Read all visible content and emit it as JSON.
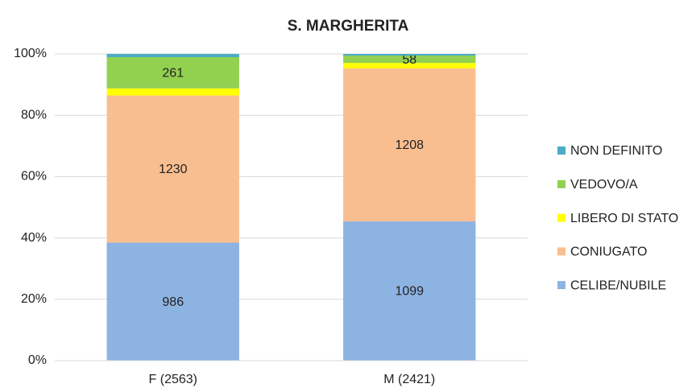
{
  "chart_data": {
    "type": "bar",
    "stacking": "percent",
    "title": "S. MARGHERITA",
    "categories": [
      "F (2563)",
      "M (2421)"
    ],
    "series": [
      {
        "name": "CELIBE/NUBILE",
        "color": "#8db3e2",
        "values": [
          986,
          1099
        ],
        "show_labels": true
      },
      {
        "name": "CONIUGATO",
        "color": "#f9be8f",
        "values": [
          1230,
          1208
        ],
        "show_labels": true
      },
      {
        "name": "LIBERO DI STATO",
        "color": "#ffff00",
        "values": [
          59,
          43
        ],
        "show_labels": false
      },
      {
        "name": "VEDOVO/A",
        "color": "#92d050",
        "values": [
          261,
          58
        ],
        "show_labels": true
      },
      {
        "name": "NON DEFINITO",
        "color": "#4bacc6",
        "values": [
          27,
          13
        ],
        "show_labels": false
      }
    ],
    "ylim": [
      0,
      100
    ],
    "yticks": [
      {
        "value": 0,
        "label": "0%"
      },
      {
        "value": 20,
        "label": "20%"
      },
      {
        "value": 40,
        "label": "40%"
      },
      {
        "value": 60,
        "label": "60%"
      },
      {
        "value": 80,
        "label": "80%"
      },
      {
        "value": 100,
        "label": "100%"
      }
    ],
    "grid": true,
    "legend": "right"
  }
}
